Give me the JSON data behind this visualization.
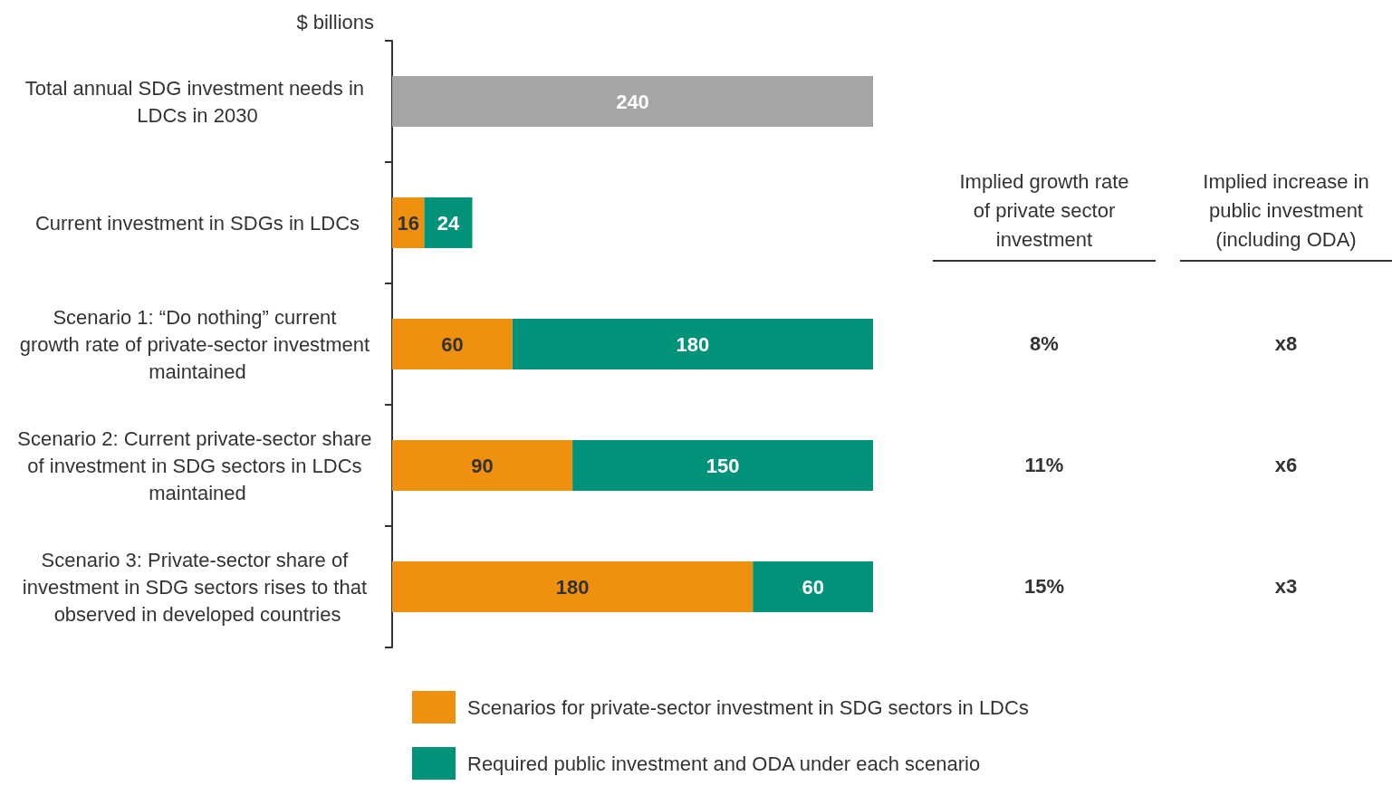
{
  "chart_data": {
    "type": "bar",
    "orientation": "horizontal",
    "stacked": true,
    "data_labels": true,
    "legend": "bottom",
    "ylabel": "$ billions",
    "categories": [
      "Total annual SDG investment needs in LDCs in 2030",
      "Current investment in SDGs in LDCs",
      "Scenario 1: “Do nothing” current growth rate of private-sector investment maintained",
      "Scenario 2: Current private-sector share of investment in SDG sectors in LDCs maintained",
      "Scenario 3: Private-sector share of investment in SDG sectors rises to that observed in developed countries"
    ],
    "series": [
      {
        "color": "#a5a5a5",
        "values": [
          240,
          null,
          null,
          null,
          null
        ]
      },
      {
        "name": "Scenarios for private-sector investment in SDG sectors in LDCs",
        "color": "#f0900f",
        "values": [
          null,
          16,
          60,
          90,
          180
        ]
      },
      {
        "name": "Required public investment and ODA under each scenario",
        "color": "#00937a",
        "values": [
          null,
          24,
          180,
          150,
          60
        ]
      }
    ],
    "annotations": [
      "Implied growth rate of private sector investment",
      "Implied increase in public investment (including ODA)",
      "8%",
      "x8",
      "11%",
      "x6",
      "15%",
      "x3"
    ]
  }
}
